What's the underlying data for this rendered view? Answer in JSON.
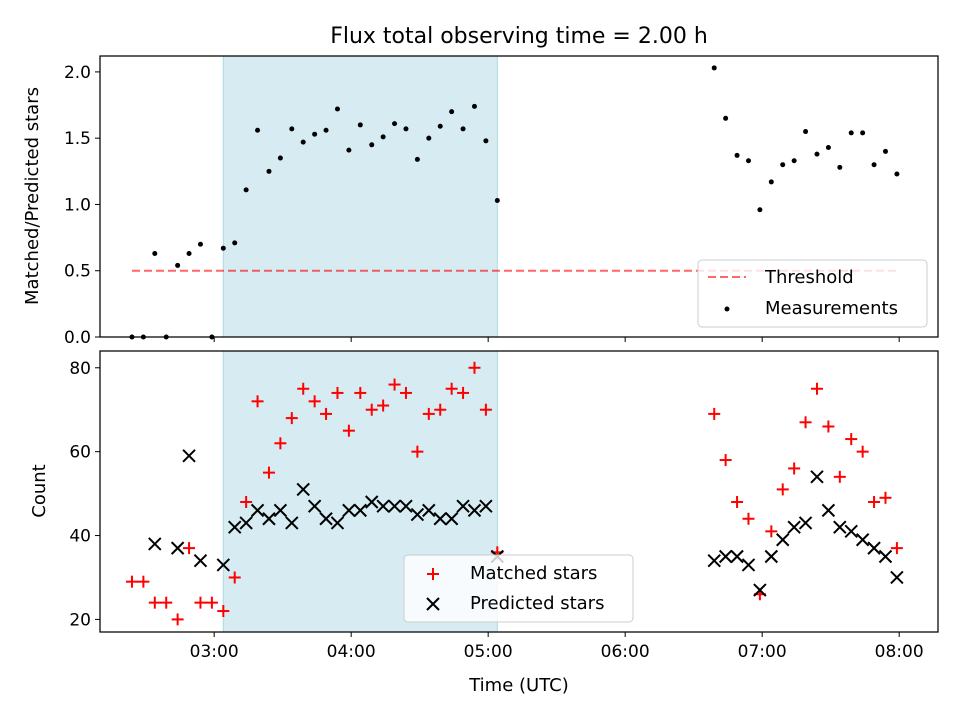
{
  "title": "Flux total observing time = 2.00 h",
  "colors": {
    "shade": "#add8e6",
    "threshold": "#ff0000",
    "measurement": "#000000",
    "matched": "#ff0000",
    "predicted": "#000000"
  },
  "chart_data": [
    {
      "type": "scatter",
      "panel": "top",
      "ylabel": "Matched/Predicted stars",
      "xlim": [
        "02:10",
        "08:17"
      ],
      "ylim": [
        0,
        2.12
      ],
      "yticks": [
        "0.0",
        "0.5",
        "1.0",
        "1.5",
        "2.0"
      ],
      "shaded_interval": [
        "03:04",
        "05:04"
      ],
      "legend": {
        "placement": "lower right",
        "entries": [
          "Threshold",
          "Measurements"
        ]
      },
      "threshold": {
        "name": "Threshold",
        "y": 0.5,
        "x_range": [
          "02:24",
          "08:00"
        ],
        "style": "dashed"
      },
      "series": [
        {
          "name": "Measurements",
          "marker": "dot",
          "points": [
            [
              "02:24",
              0.0
            ],
            [
              "02:29",
              0.0
            ],
            [
              "02:34",
              0.63
            ],
            [
              "02:39",
              0.0
            ],
            [
              "02:44",
              0.54
            ],
            [
              "02:49",
              0.63
            ],
            [
              "02:54",
              0.7
            ],
            [
              "02:59",
              0.0
            ],
            [
              "03:04",
              0.67
            ],
            [
              "03:09",
              0.71
            ],
            [
              "03:14",
              1.11
            ],
            [
              "03:19",
              1.56
            ],
            [
              "03:24",
              1.25
            ],
            [
              "03:29",
              1.35
            ],
            [
              "03:34",
              1.57
            ],
            [
              "03:39",
              1.47
            ],
            [
              "03:44",
              1.53
            ],
            [
              "03:49",
              1.56
            ],
            [
              "03:54",
              1.72
            ],
            [
              "03:59",
              1.41
            ],
            [
              "04:04",
              1.6
            ],
            [
              "04:09",
              1.45
            ],
            [
              "04:14",
              1.51
            ],
            [
              "04:19",
              1.61
            ],
            [
              "04:24",
              1.57
            ],
            [
              "04:29",
              1.34
            ],
            [
              "04:34",
              1.5
            ],
            [
              "04:39",
              1.59
            ],
            [
              "04:44",
              1.7
            ],
            [
              "04:49",
              1.57
            ],
            [
              "04:54",
              1.74
            ],
            [
              "04:59",
              1.48
            ],
            [
              "05:04",
              1.03
            ],
            [
              "06:39",
              2.03
            ],
            [
              "06:44",
              1.65
            ],
            [
              "06:49",
              1.37
            ],
            [
              "06:54",
              1.33
            ],
            [
              "06:59",
              0.96
            ],
            [
              "07:04",
              1.17
            ],
            [
              "07:09",
              1.3
            ],
            [
              "07:14",
              1.33
            ],
            [
              "07:19",
              1.55
            ],
            [
              "07:24",
              1.38
            ],
            [
              "07:29",
              1.43
            ],
            [
              "07:34",
              1.28
            ],
            [
              "07:39",
              1.54
            ],
            [
              "07:44",
              1.54
            ],
            [
              "07:49",
              1.3
            ],
            [
              "07:54",
              1.4
            ],
            [
              "07:59",
              1.23
            ]
          ]
        }
      ]
    },
    {
      "type": "scatter",
      "panel": "bottom",
      "xlabel": "Time (UTC)",
      "ylabel": "Count",
      "xlim": [
        "02:10",
        "08:17"
      ],
      "ylim": [
        17,
        84
      ],
      "xticks": [
        "03:00",
        "04:00",
        "05:00",
        "06:00",
        "07:00",
        "08:00"
      ],
      "yticks": [
        "20",
        "40",
        "60",
        "80"
      ],
      "shaded_interval": [
        "03:04",
        "05:04"
      ],
      "legend": {
        "placement": "lower center",
        "entries": [
          "Matched stars",
          "Predicted stars"
        ]
      },
      "series": [
        {
          "name": "Matched stars",
          "marker": "plus",
          "points": [
            [
              "02:24",
              29
            ],
            [
              "02:29",
              29
            ],
            [
              "02:34",
              24
            ],
            [
              "02:39",
              24
            ],
            [
              "02:44",
              20
            ],
            [
              "02:49",
              37
            ],
            [
              "02:54",
              24
            ],
            [
              "02:59",
              24
            ],
            [
              "03:04",
              22
            ],
            [
              "03:09",
              30
            ],
            [
              "03:14",
              48
            ],
            [
              "03:19",
              72
            ],
            [
              "03:24",
              55
            ],
            [
              "03:29",
              62
            ],
            [
              "03:34",
              68
            ],
            [
              "03:39",
              75
            ],
            [
              "03:44",
              72
            ],
            [
              "03:49",
              69
            ],
            [
              "03:54",
              74
            ],
            [
              "03:59",
              65
            ],
            [
              "04:04",
              74
            ],
            [
              "04:09",
              70
            ],
            [
              "04:14",
              71
            ],
            [
              "04:19",
              76
            ],
            [
              "04:24",
              74
            ],
            [
              "04:29",
              60
            ],
            [
              "04:34",
              69
            ],
            [
              "04:39",
              70
            ],
            [
              "04:44",
              75
            ],
            [
              "04:49",
              74
            ],
            [
              "04:54",
              80
            ],
            [
              "04:59",
              70
            ],
            [
              "05:04",
              36
            ],
            [
              "06:39",
              69
            ],
            [
              "06:44",
              58
            ],
            [
              "06:49",
              48
            ],
            [
              "06:54",
              44
            ],
            [
              "06:59",
              26
            ],
            [
              "07:04",
              41
            ],
            [
              "07:09",
              51
            ],
            [
              "07:14",
              56
            ],
            [
              "07:19",
              67
            ],
            [
              "07:24",
              75
            ],
            [
              "07:29",
              66
            ],
            [
              "07:34",
              54
            ],
            [
              "07:39",
              63
            ],
            [
              "07:44",
              60
            ],
            [
              "07:49",
              48
            ],
            [
              "07:54",
              49
            ],
            [
              "07:59",
              37
            ]
          ]
        },
        {
          "name": "Predicted stars",
          "marker": "x",
          "points": [
            [
              "02:34",
              38
            ],
            [
              "02:44",
              37
            ],
            [
              "02:49",
              59
            ],
            [
              "02:54",
              34
            ],
            [
              "03:04",
              33
            ],
            [
              "03:09",
              42
            ],
            [
              "03:14",
              43
            ],
            [
              "03:19",
              46
            ],
            [
              "03:24",
              44
            ],
            [
              "03:29",
              46
            ],
            [
              "03:34",
              43
            ],
            [
              "03:39",
              51
            ],
            [
              "03:44",
              47
            ],
            [
              "03:49",
              44
            ],
            [
              "03:54",
              43
            ],
            [
              "03:59",
              46
            ],
            [
              "04:04",
              46
            ],
            [
              "04:09",
              48
            ],
            [
              "04:14",
              47
            ],
            [
              "04:19",
              47
            ],
            [
              "04:24",
              47
            ],
            [
              "04:29",
              45
            ],
            [
              "04:34",
              46
            ],
            [
              "04:39",
              44
            ],
            [
              "04:44",
              44
            ],
            [
              "04:49",
              47
            ],
            [
              "04:54",
              46
            ],
            [
              "04:59",
              47
            ],
            [
              "05:04",
              35
            ],
            [
              "06:39",
              34
            ],
            [
              "06:44",
              35
            ],
            [
              "06:49",
              35
            ],
            [
              "06:54",
              33
            ],
            [
              "06:59",
              27
            ],
            [
              "07:04",
              35
            ],
            [
              "07:09",
              39
            ],
            [
              "07:14",
              42
            ],
            [
              "07:19",
              43
            ],
            [
              "07:24",
              54
            ],
            [
              "07:29",
              46
            ],
            [
              "07:34",
              42
            ],
            [
              "07:39",
              41
            ],
            [
              "07:44",
              39
            ],
            [
              "07:49",
              37
            ],
            [
              "07:54",
              35
            ],
            [
              "07:59",
              30
            ]
          ]
        }
      ]
    }
  ]
}
